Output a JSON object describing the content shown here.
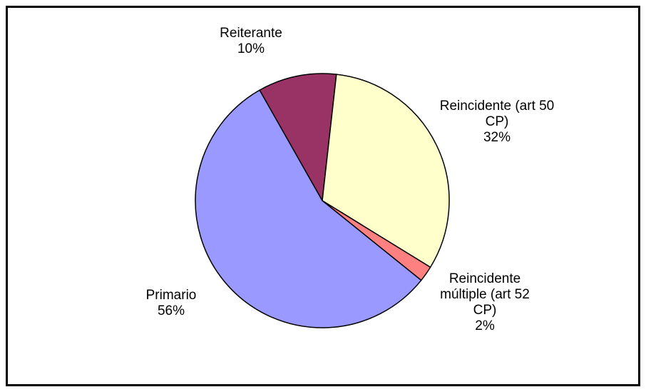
{
  "chart_data": {
    "type": "pie",
    "categories": [
      "Reiterante",
      "Reincidente (art 50 CP)",
      "Reincidente múltiple (art 52 CP)",
      "Primario"
    ],
    "values": [
      10,
      32,
      2,
      56
    ],
    "value_labels": [
      "10%",
      "32%",
      "2%",
      "56%"
    ],
    "colors": [
      "#993366",
      "#ffffcc",
      "#ff8080",
      "#9999ff"
    ]
  }
}
